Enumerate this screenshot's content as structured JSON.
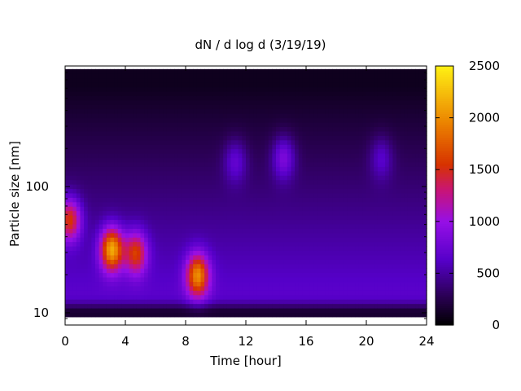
{
  "chart_data": {
    "type": "heatmap",
    "title": "dN / d log d (3/19/19)",
    "xlabel": "Time [hour]",
    "ylabel": "Particle size [nm]",
    "x_range": [
      0,
      24
    ],
    "x_ticks": [
      0,
      4,
      8,
      12,
      16,
      20,
      24
    ],
    "y_scale": "log",
    "y_range": [
      8,
      900
    ],
    "y_ticks": [
      10,
      100
    ],
    "colorbar": {
      "range": [
        0,
        2500
      ],
      "ticks": [
        0,
        500,
        1000,
        1500,
        2000,
        2500
      ],
      "colormap": "gnuplot (black-purple-red-yellow)"
    },
    "features": [
      {
        "time_h": 0.3,
        "size_nm": 55,
        "dN_dlogd": 1700
      },
      {
        "time_h": 3.1,
        "size_nm": 32,
        "dN_dlogd": 2200
      },
      {
        "time_h": 4.7,
        "size_nm": 30,
        "dN_dlogd": 1650
      },
      {
        "time_h": 8.8,
        "size_nm": 20,
        "dN_dlogd": 2000
      },
      {
        "time_h": 11.3,
        "size_nm": 160,
        "dN_dlogd": 1000
      },
      {
        "time_h": 14.5,
        "size_nm": 170,
        "dN_dlogd": 1150
      },
      {
        "time_h": 21.0,
        "size_nm": 170,
        "dN_dlogd": 950
      }
    ],
    "background": {
      "small_sizes_dN_dlogd": 700,
      "large_sizes_dN_dlogd": 100
    }
  }
}
